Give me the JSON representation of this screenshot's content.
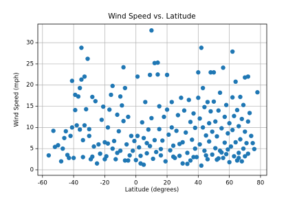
{
  "chart_data": {
    "type": "scatter",
    "title": "Wind Speed vs. Latitude",
    "x_label": "Latitude (degrees)",
    "y_label": "Wind Speed (mph)",
    "color": "#1f77b4",
    "grid": true,
    "xlim": [
      -63,
      84
    ],
    "ylim": [
      -1.3,
      34.4
    ],
    "xticks": [
      -60,
      -40,
      -20,
      0,
      20,
      40,
      60,
      80
    ],
    "yticks": [
      0,
      5,
      10,
      15,
      20,
      25,
      30
    ],
    "x": [
      -56,
      -53,
      -50,
      -46,
      -45,
      -44,
      -43,
      -42,
      -41,
      -41,
      -40,
      -39,
      -39,
      -38,
      -37,
      -36,
      -36,
      -35,
      -35,
      -34,
      -34,
      -33,
      -33,
      -32,
      -31,
      -30,
      -29,
      -28,
      -27,
      -26,
      -25,
      -24,
      -23,
      -22,
      -21,
      -20,
      -19,
      -18,
      -17,
      -16,
      -15,
      -15,
      -14,
      -13,
      -12,
      -11,
      -10,
      -10,
      -9,
      -8,
      -8,
      -7,
      -7,
      -6,
      -5,
      -4,
      -3,
      -2,
      -1,
      0,
      1,
      1,
      2,
      3,
      4,
      5,
      5,
      6,
      7,
      8,
      9,
      9,
      10,
      10,
      11,
      12,
      12,
      13,
      14,
      14,
      15,
      15,
      16,
      17,
      18,
      19,
      20,
      20,
      21,
      22,
      23,
      23,
      24,
      25,
      26,
      27,
      28,
      29,
      30,
      30,
      31,
      32,
      33,
      34,
      35,
      35,
      36,
      37,
      38,
      38,
      39,
      40,
      40,
      41,
      41,
      42,
      42,
      43,
      43,
      44,
      44,
      45,
      46,
      46,
      47,
      47,
      48,
      48,
      49,
      49,
      50,
      50,
      51,
      51,
      52,
      52,
      53,
      54,
      54,
      55,
      56,
      56,
      57,
      57,
      58,
      58,
      59,
      60,
      60,
      61,
      62,
      62,
      62,
      63,
      63,
      64,
      64,
      65,
      65,
      66,
      66,
      67,
      67,
      68,
      68,
      69,
      69,
      70,
      70,
      70,
      71,
      72,
      72,
      72,
      73,
      74,
      75,
      78,
      76,
      -52,
      -48,
      -47,
      -30,
      -28,
      -20,
      -12,
      -5,
      3,
      7,
      16,
      24,
      28,
      33,
      37,
      45,
      53,
      59,
      66,
      55,
      -18
    ],
    "values": [
      3.4,
      9.2,
      5.8,
      7.5,
      9.1,
      3.5,
      2.8,
      8.0,
      21.0,
      10.0,
      2.8,
      14.1,
      17.7,
      10.5,
      17.3,
      19.3,
      9.5,
      28.8,
      21.3,
      7.0,
      3.0,
      22.0,
      10.5,
      14.3,
      26.2,
      8.0,
      2.5,
      17.2,
      5.5,
      16.2,
      1.5,
      6.0,
      3.8,
      11.8,
      14.9,
      6.5,
      3.2,
      10.0,
      14.2,
      17.7,
      19.8,
      5.0,
      6.8,
      2.5,
      13.0,
      9.1,
      17.3,
      4.5,
      15.2,
      24.2,
      11.5,
      19.3,
      2.2,
      6.0,
      12.5,
      3.4,
      8.0,
      4.5,
      6.8,
      2.3,
      22.0,
      8.0,
      5.3,
      3.3,
      11.2,
      1.2,
      7.5,
      16.0,
      3.9,
      9.5,
      22.4,
      5.6,
      32.9,
      12.2,
      2.6,
      25.2,
      7.0,
      4.2,
      25.3,
      22.5,
      15.0,
      9.6,
      3.4,
      6.9,
      12.5,
      2.0,
      22.4,
      14.2,
      8.3,
      4.6,
      16.0,
      10.0,
      5.7,
      2.8,
      9.2,
      12.9,
      3.3,
      17.0,
      6.5,
      1.5,
      14.0,
      8.8,
      4.0,
      16.5,
      11.3,
      2.2,
      7.1,
      13.3,
      5.0,
      9.9,
      3.0,
      23.0,
      17.0,
      12.1,
      6.0,
      28.8,
      1.0,
      19.3,
      10.0,
      14.8,
      4.5,
      8.1,
      16.0,
      2.5,
      11.0,
      6.7,
      23.0,
      13.8,
      3.6,
      9.0,
      23.0,
      16.1,
      5.1,
      11.4,
      2.4,
      7.9,
      14.0,
      18.2,
      4.5,
      9.8,
      24.1,
      2.8,
      12.5,
      6.4,
      15.3,
      3.7,
      8.6,
      11.0,
      1.8,
      5.5,
      27.9,
      17.1,
      9.4,
      3.2,
      12.7,
      20.8,
      6.5,
      2.2,
      14.1,
      4.0,
      10.3,
      17.2,
      7.2,
      2.0,
      12.0,
      5.0,
      15.3,
      21.8,
      3.2,
      9.0,
      6.3,
      22.0,
      11.4,
      3.8,
      13.4,
      8.0,
      6.3,
      18.3,
      4.9,
      5.4,
      2.0,
      5.0,
      9.6,
      3.1,
      2.5,
      4.0,
      2.2,
      1.5,
      6.3,
      4.9,
      3.1,
      6.1,
      1.4,
      3.0,
      3.4,
      2.7,
      4.8,
      2.8,
      4.1,
      6.2
    ]
  }
}
